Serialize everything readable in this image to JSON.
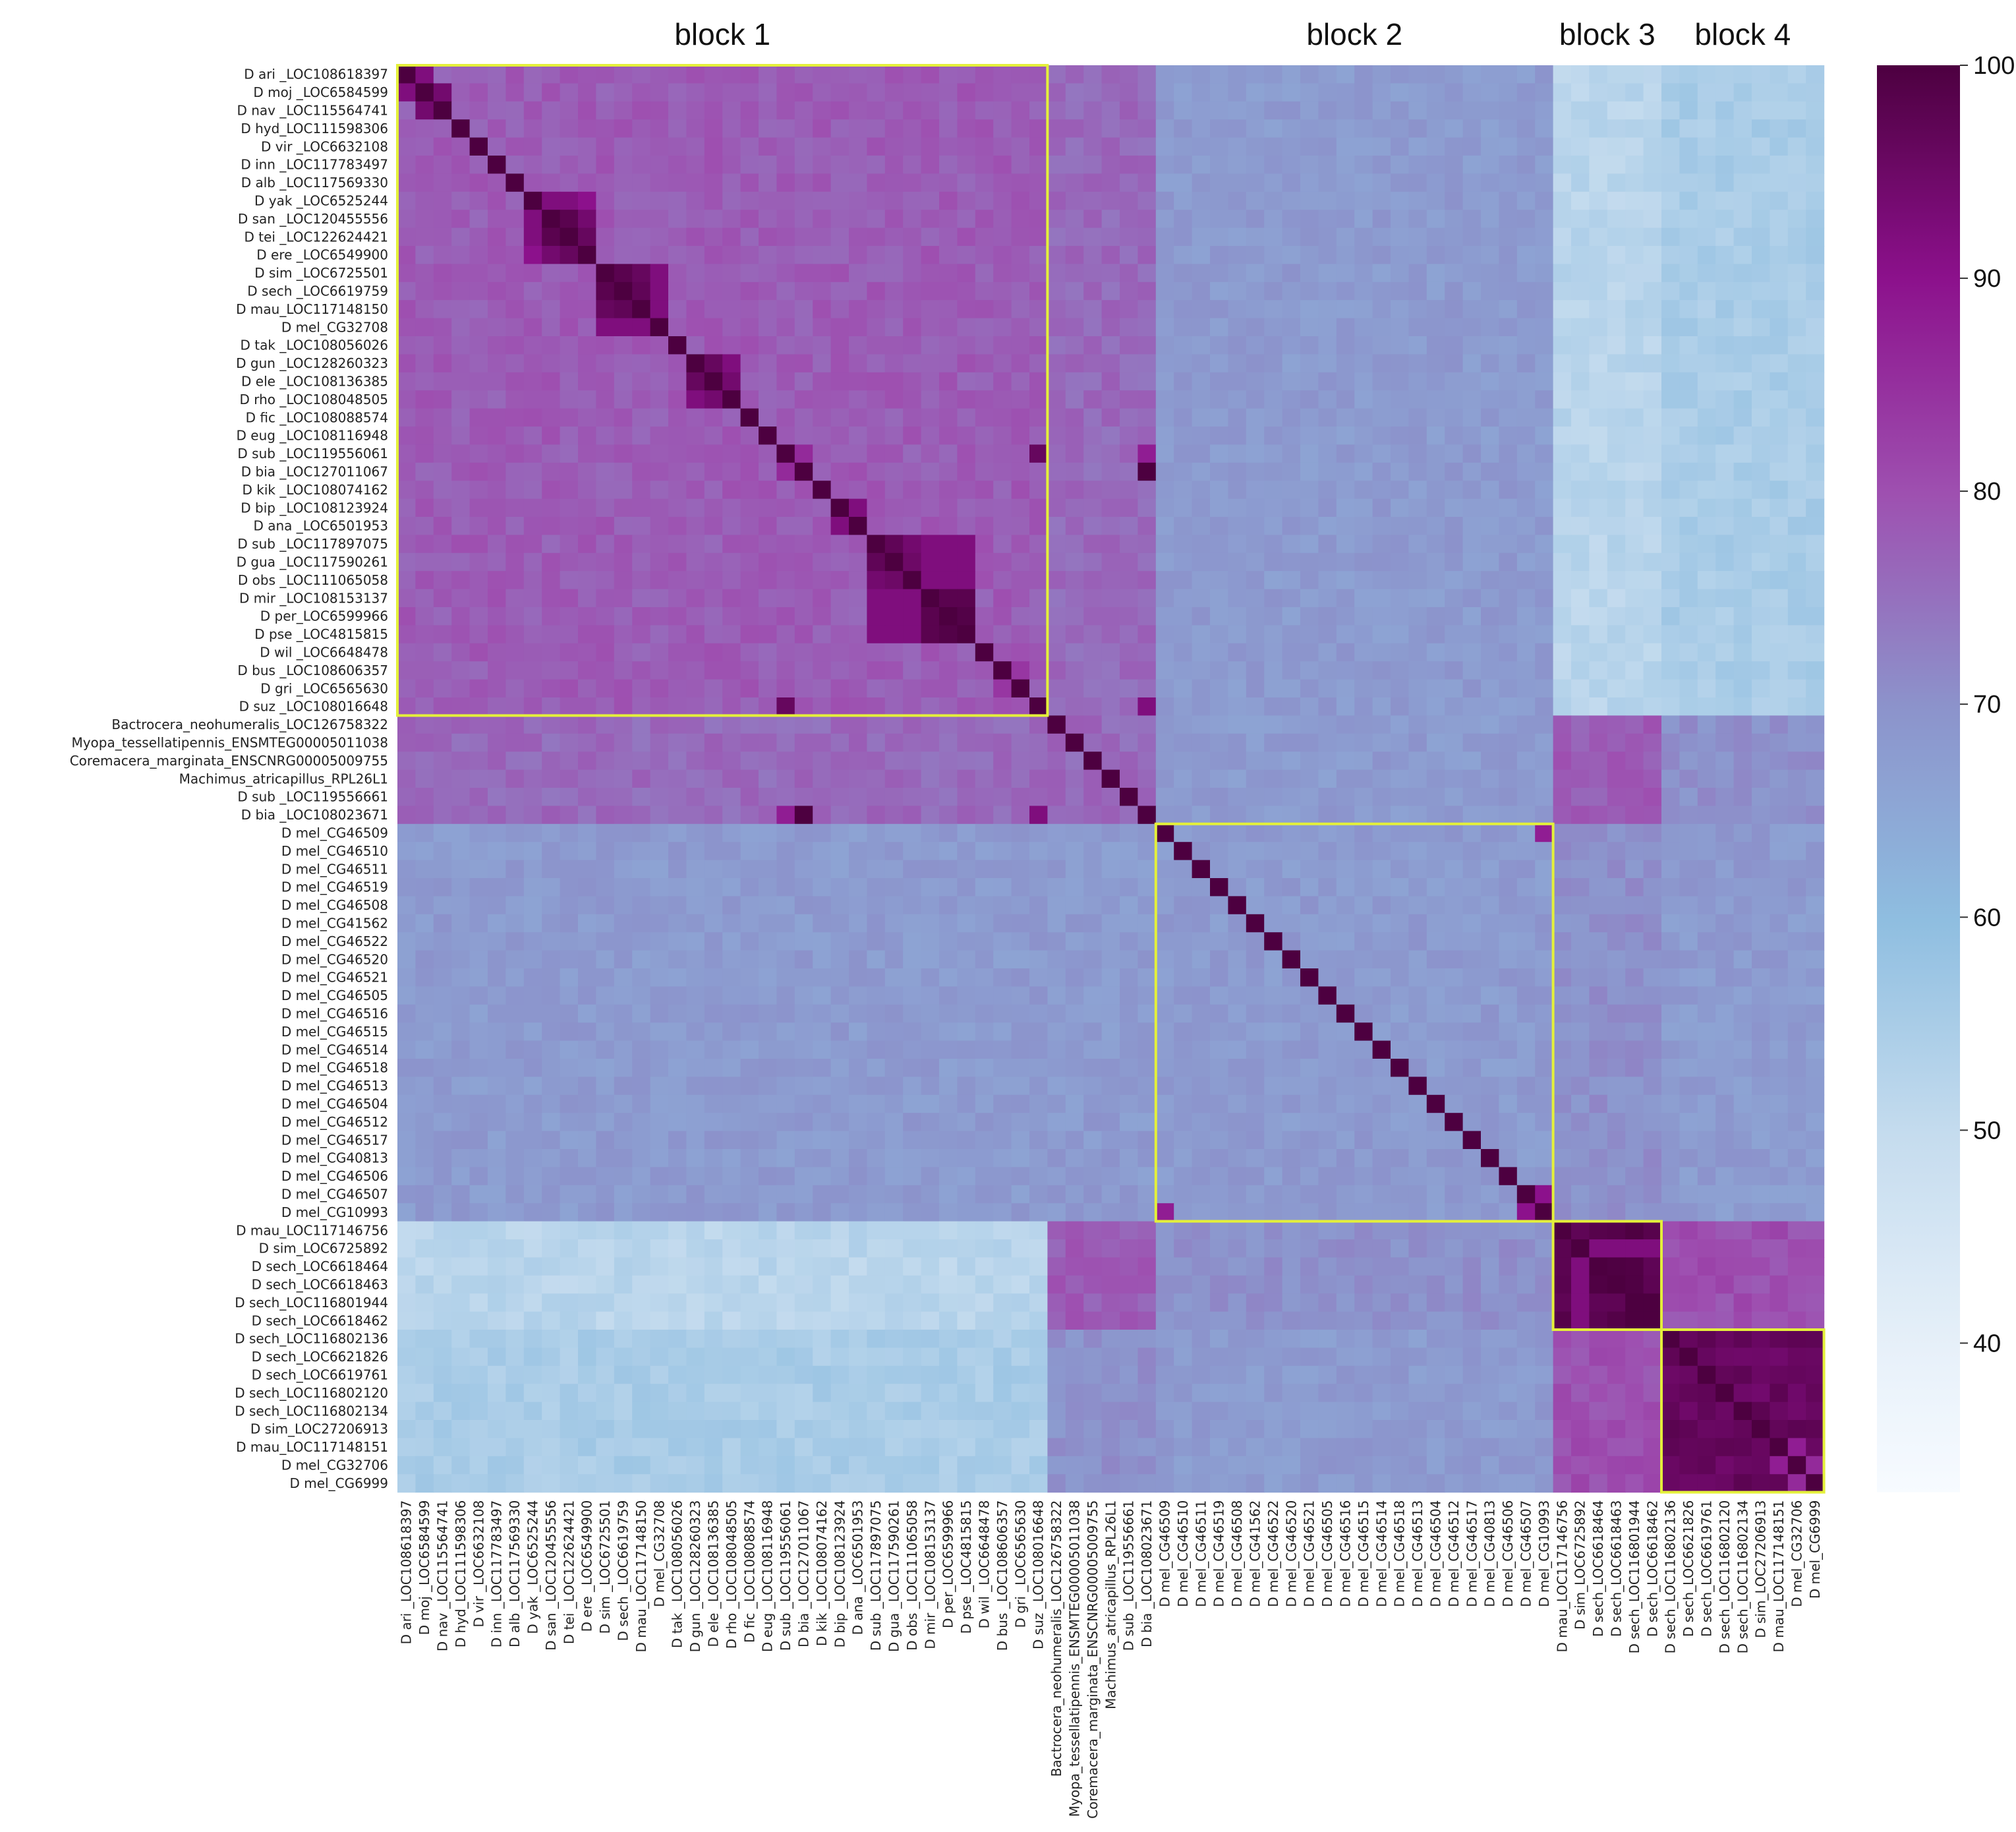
{
  "chart_data": {
    "type": "heatmap",
    "title": "",
    "xlabel": "",
    "ylabel": "",
    "labels": [
      "D ari _LOC108618397",
      "D moj _LOC6584599",
      "D nav _LOC115564741",
      "D hyd_LOC111598306",
      "D vir _LOC6632108",
      "D inn _LOC117783497",
      "D alb _LOC117569330",
      "D yak _LOC6525244",
      "D san _LOC120455556",
      "D tei _LOC122624421",
      "D ere _LOC6549900",
      "D sim _LOC6725501",
      "D sech _LOC6619759",
      "D mau_LOC117148150",
      "D mel_CG32708",
      "D tak _LOC108056026",
      "D gun _LOC128260323",
      "D ele _LOC108136385",
      "D rho _LOC108048505",
      "D fic _LOC108088574",
      "D eug _LOC108116948",
      "D sub _LOC119556061",
      "D bia _LOC127011067",
      "D kik _LOC108074162",
      "D bip _LOC108123924",
      "D ana _LOC6501953",
      "D sub _LOC117897075",
      "D gua _LOC117590261",
      "D obs _LOC111065058",
      "D mir _LOC108153137",
      "D per_LOC6599966",
      "D pse _LOC4815815",
      "D wil _LOC6648478",
      "D bus _LOC108606357",
      "D gri _LOC6565630",
      "D suz _LOC108016648",
      "Bactrocera_neohumeralis_LOC126758322",
      "Myopa_tessellatipennis_ENSMTEG00005011038",
      "Coremacera_marginata_ENSCNRG00005009755",
      "Machimus_atricapillus_RPL26L1",
      "D sub _LOC119556661",
      "D bia _LOC108023671",
      "D mel_CG46509",
      "D mel_CG46510",
      "D mel_CG46511",
      "D mel_CG46519",
      "D mel_CG46508",
      "D mel_CG41562",
      "D mel_CG46522",
      "D mel_CG46520",
      "D mel_CG46521",
      "D mel_CG46505",
      "D mel_CG46516",
      "D mel_CG46515",
      "D mel_CG46514",
      "D mel_CG46518",
      "D mel_CG46513",
      "D mel_CG46504",
      "D mel_CG46512",
      "D mel_CG46517",
      "D mel_CG40813",
      "D mel_CG46506",
      "D mel_CG46507",
      "D mel_CG10993",
      "D mau_LOC117146756",
      "D sim_LOC6725892",
      "D sech_LOC6618464",
      "D sech_LOC6618463",
      "D sech_LOC116801944",
      "D sech_LOC6618462",
      "D sech_LOC116802136",
      "D sech_LOC6621826",
      "D sech_LOC6619761",
      "D sech_LOC116802120",
      "D sech_LOC116802134",
      "D sim_LOC27206913",
      "D mau_LOC117148151",
      "D mel_CG32706",
      "D mel_CG6999"
    ],
    "groups": [
      {
        "start": 0,
        "end": 35,
        "kind": "block1"
      },
      {
        "start": 36,
        "end": 41,
        "kind": "outgroup"
      },
      {
        "start": 42,
        "end": 63,
        "kind": "block2"
      },
      {
        "start": 64,
        "end": 69,
        "kind": "block3"
      },
      {
        "start": 70,
        "end": 78,
        "kind": "block4"
      }
    ],
    "group_identity": [
      [
        78,
        76,
        68,
        52,
        55,
        50
      ],
      [
        76,
        76,
        68,
        78,
        70,
        70
      ],
      [
        68,
        68,
        68,
        70,
        68,
        60
      ],
      [
        52,
        78,
        70,
        99,
        80,
        75
      ],
      [
        55,
        70,
        68,
        80,
        96,
        78
      ],
      [
        50,
        70,
        60,
        75,
        78,
        97
      ]
    ],
    "diagonal_value": 100,
    "high_pairs": [
      [
        1,
        2,
        94
      ],
      [
        0,
        1,
        92
      ],
      [
        8,
        9,
        98
      ],
      [
        9,
        10,
        96
      ],
      [
        8,
        10,
        94
      ],
      [
        7,
        8,
        92
      ],
      [
        7,
        9,
        92
      ],
      [
        7,
        10,
        90
      ],
      [
        11,
        12,
        98
      ],
      [
        12,
        13,
        97
      ],
      [
        11,
        13,
        96
      ],
      [
        11,
        14,
        92
      ],
      [
        12,
        14,
        92
      ],
      [
        13,
        14,
        92
      ],
      [
        16,
        17,
        96
      ],
      [
        17,
        18,
        94
      ],
      [
        16,
        18,
        92
      ],
      [
        21,
        35,
        96
      ],
      [
        22,
        41,
        100
      ],
      [
        21,
        41,
        88
      ],
      [
        21,
        22,
        86
      ],
      [
        24,
        25,
        92
      ],
      [
        26,
        27,
        97
      ],
      [
        26,
        28,
        94
      ],
      [
        27,
        28,
        95
      ],
      [
        29,
        30,
        98
      ],
      [
        29,
        31,
        98
      ],
      [
        30,
        31,
        99
      ],
      [
        26,
        29,
        92
      ],
      [
        26,
        30,
        92
      ],
      [
        26,
        31,
        92
      ],
      [
        27,
        29,
        92
      ],
      [
        27,
        30,
        92
      ],
      [
        27,
        31,
        92
      ],
      [
        28,
        29,
        92
      ],
      [
        28,
        30,
        92
      ],
      [
        28,
        31,
        92
      ],
      [
        33,
        34,
        84
      ],
      [
        35,
        41,
        92
      ],
      [
        36,
        37,
        78
      ],
      [
        42,
        63,
        88
      ],
      [
        62,
        63,
        90
      ],
      [
        65,
        66,
        92
      ],
      [
        65,
        67,
        92
      ],
      [
        65,
        68,
        92
      ],
      [
        65,
        69,
        92
      ],
      [
        76,
        77,
        88
      ],
      [
        77,
        78,
        86
      ]
    ],
    "color_scale": {
      "min": 33,
      "max": 100,
      "ticks": [
        40,
        50,
        60,
        70,
        80,
        90,
        100
      ],
      "stops": [
        {
          "v": 33,
          "c": "#f7fbff"
        },
        {
          "v": 40,
          "c": "#e6f0f9"
        },
        {
          "v": 50,
          "c": "#c4dbee"
        },
        {
          "v": 60,
          "c": "#8ebde0"
        },
        {
          "v": 70,
          "c": "#8c92cb"
        },
        {
          "v": 80,
          "c": "#9e4fb0"
        },
        {
          "v": 90,
          "c": "#8c118c"
        },
        {
          "v": 100,
          "c": "#4d0040"
        }
      ]
    },
    "blocks": [
      {
        "name": "block 1",
        "start": 0,
        "end": 35
      },
      {
        "name": "block 2",
        "start": 42,
        "end": 63
      },
      {
        "name": "block 3",
        "start": 64,
        "end": 69
      },
      {
        "name": "block 4",
        "start": 70,
        "end": 78
      }
    ],
    "highlight_color": "#e4f03a"
  }
}
